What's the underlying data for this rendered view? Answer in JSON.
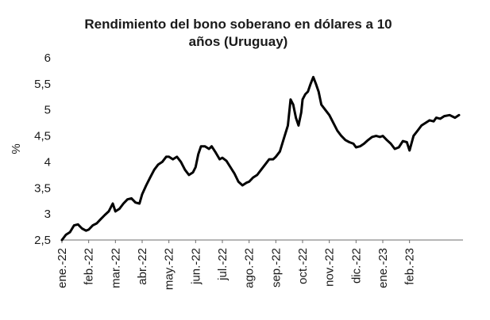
{
  "chart_data": {
    "type": "line",
    "title_lines": [
      "Rendimiento del bono soberano en dólares a 10",
      "años (Uruguay)"
    ],
    "ylabel": "%",
    "xlabel": "",
    "ylim": [
      2.5,
      6
    ],
    "yticks": [
      "6",
      "5,5",
      "5",
      "4,5",
      "4",
      "3,5",
      "3",
      "2,5"
    ],
    "ytick_values": [
      6,
      5.5,
      5,
      4.5,
      4,
      3.5,
      3,
      2.5
    ],
    "xticks": [
      "ene.-22",
      "feb.-22",
      "mar.-22",
      "abr.-22",
      "may.-22",
      "jun.-22",
      "jul.-22",
      "ago.-22",
      "sep.-22",
      "oct.-22",
      "nov.-22",
      "dic.-22",
      "ene.-23",
      "feb.-23"
    ],
    "xtick_months": [
      0,
      1,
      2,
      3,
      4,
      5,
      6,
      7,
      8,
      9,
      10,
      11,
      12,
      13
    ],
    "xlim_months": [
      0,
      15.0
    ],
    "grid": false,
    "legend": "none",
    "series": [
      {
        "color": "#000000",
        "x_months": [
          0.0,
          0.15,
          0.3,
          0.45,
          0.6,
          0.75,
          0.9,
          1.0,
          1.15,
          1.3,
          1.45,
          1.6,
          1.75,
          1.9,
          2.0,
          2.15,
          2.3,
          2.45,
          2.6,
          2.75,
          2.9,
          3.0,
          3.15,
          3.3,
          3.45,
          3.6,
          3.75,
          3.9,
          4.0,
          4.15,
          4.3,
          4.45,
          4.6,
          4.75,
          4.9,
          5.0,
          5.1,
          5.2,
          5.35,
          5.5,
          5.6,
          5.75,
          5.9,
          6.0,
          6.15,
          6.3,
          6.45,
          6.6,
          6.75,
          6.9,
          7.0,
          7.15,
          7.3,
          7.45,
          7.6,
          7.75,
          7.9,
          8.0,
          8.15,
          8.3,
          8.45,
          8.55,
          8.65,
          8.75,
          8.85,
          8.95,
          9.0,
          9.1,
          9.2,
          9.3,
          9.4,
          9.5,
          9.6,
          9.7,
          9.85,
          10.0,
          10.15,
          10.3,
          10.45,
          10.6,
          10.75,
          10.9,
          11.0,
          11.15,
          11.3,
          11.45,
          11.6,
          11.75,
          11.9,
          12.0,
          12.15,
          12.3,
          12.45,
          12.6,
          12.75,
          12.9,
          13.0,
          13.15,
          13.3,
          13.45,
          13.6,
          13.75,
          13.9,
          14.0,
          14.15,
          14.3,
          14.5,
          14.7,
          14.85
        ],
        "values": [
          2.5,
          2.6,
          2.65,
          2.78,
          2.8,
          2.72,
          2.68,
          2.7,
          2.78,
          2.82,
          2.9,
          2.98,
          3.05,
          3.2,
          3.05,
          3.1,
          3.2,
          3.28,
          3.3,
          3.22,
          3.2,
          3.38,
          3.55,
          3.7,
          3.85,
          3.95,
          4.0,
          4.1,
          4.1,
          4.05,
          4.1,
          4.0,
          3.85,
          3.75,
          3.8,
          3.9,
          4.15,
          4.3,
          4.3,
          4.25,
          4.3,
          4.18,
          4.05,
          4.08,
          4.02,
          3.9,
          3.78,
          3.62,
          3.55,
          3.6,
          3.62,
          3.7,
          3.75,
          3.85,
          3.95,
          4.05,
          4.05,
          4.1,
          4.2,
          4.45,
          4.7,
          5.2,
          5.1,
          4.85,
          4.7,
          4.95,
          5.2,
          5.3,
          5.35,
          5.5,
          5.63,
          5.5,
          5.35,
          5.1,
          5.0,
          4.9,
          4.75,
          4.6,
          4.5,
          4.42,
          4.38,
          4.35,
          4.28,
          4.3,
          4.35,
          4.42,
          4.48,
          4.5,
          4.48,
          4.5,
          4.42,
          4.35,
          4.25,
          4.28,
          4.4,
          4.38,
          4.22,
          4.5,
          4.6,
          4.7,
          4.75,
          4.8,
          4.78,
          4.85,
          4.83,
          4.88,
          4.9,
          4.85,
          4.9
        ]
      }
    ]
  }
}
